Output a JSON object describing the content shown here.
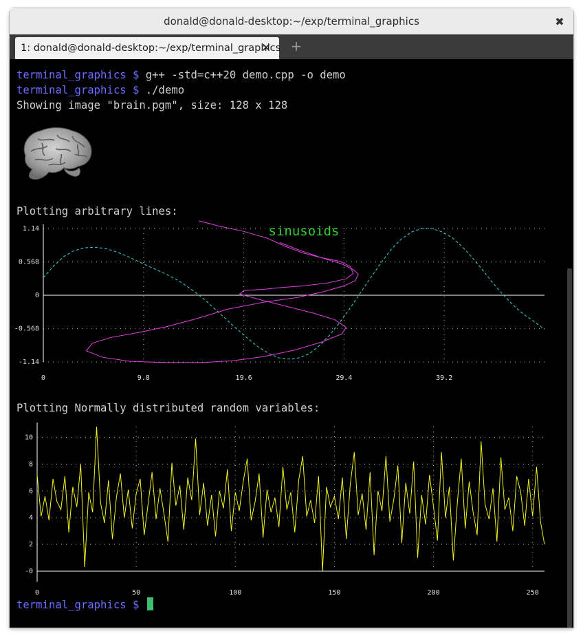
{
  "window": {
    "title": "donald@donald-desktop:~/exp/terminal_graphics"
  },
  "tabs": [
    {
      "label": "1: donald@donald-desktop:~/exp/terminal_graphics"
    }
  ],
  "icons": {
    "close": "close-icon",
    "tab_close": "tab-close-icon",
    "new_tab": "plus-icon",
    "image": "brain-image"
  },
  "colors": {
    "prompt": "#6b6bff",
    "sinusoid_magenta": "#e23de2",
    "sinusoid_cyan": "#33d6d6",
    "random_yellow": "#f5f51e",
    "title_green": "#33cc33",
    "cursor": "#3dbf6f"
  },
  "terminal": {
    "prompt": "terminal_graphics $",
    "lines": [
      {
        "prompt": "terminal_graphics $",
        "command": " g++ -std=c++20 demo.cpp -o demo"
      },
      {
        "prompt": "terminal_graphics $",
        "command": " ./demo"
      }
    ],
    "image_info": "Showing image \"brain.pgm\", size: 128 x 128",
    "plot1_heading": "Plotting arbitrary lines:",
    "plot2_heading": "Plotting Normally distributed random variables:"
  },
  "chart_data": [
    {
      "type": "line",
      "title": "sinusoids",
      "xlim": [
        0,
        49
      ],
      "ylim": [
        -1.14,
        1.14
      ],
      "x_ticks": [
        "0",
        "9.8",
        "19.6",
        "29.4",
        "39.2"
      ],
      "x_tick_values": [
        0,
        9.8,
        19.6,
        29.4,
        39.2
      ],
      "y_ticks": [
        "1.14",
        "0.568",
        "0",
        "-0.568",
        "-1.14"
      ],
      "y_tick_values": [
        1.14,
        0.568,
        0,
        -0.568,
        -1.14
      ],
      "grid": true,
      "series": [
        {
          "style": "dashed",
          "color": "#33d6d6",
          "x": [
            0,
            1,
            2,
            3,
            4,
            5,
            6,
            7,
            8,
            9,
            10,
            11,
            12,
            13,
            14,
            15,
            16,
            17,
            18,
            19,
            20,
            21,
            22,
            23,
            24,
            25,
            26,
            27,
            28,
            29,
            30,
            31,
            32,
            33,
            34,
            35,
            36,
            37,
            38,
            39,
            40,
            41,
            42,
            43,
            44,
            45,
            46,
            47,
            48,
            49
          ],
          "y": [
            0.3,
            0.5,
            0.66,
            0.76,
            0.81,
            0.82,
            0.8,
            0.75,
            0.68,
            0.6,
            0.52,
            0.44,
            0.36,
            0.27,
            0.16,
            0.03,
            -0.11,
            -0.27,
            -0.43,
            -0.59,
            -0.74,
            -0.88,
            -0.99,
            -1.07,
            -1.09,
            -1.07,
            -1.0,
            -0.86,
            -0.68,
            -0.46,
            -0.22,
            0.04,
            0.3,
            0.55,
            0.78,
            0.96,
            1.08,
            1.14,
            1.14,
            1.08,
            0.98,
            0.82,
            0.63,
            0.42,
            0.2,
            0.0,
            -0.18,
            -0.33,
            -0.45,
            -0.58
          ]
        },
        {
          "style": "solid",
          "color": "#e23de2",
          "x": [
            15.2,
            17.2,
            19.6,
            21.8,
            23.6,
            25.4,
            27.2,
            29.0,
            30.0,
            30.3,
            29.6,
            27.8,
            25.5,
            23.2,
            21.5,
            19.6,
            19.2,
            21.5,
            24.0,
            26.5,
            28.5,
            29.6,
            29.2,
            27.2,
            24.5,
            21.5,
            18.5,
            15.5,
            12.0,
            8.5,
            5.8,
            4.2,
            4.8,
            6.6,
            9.2,
            12.0,
            15.0,
            18.0,
            21.5,
            24.8,
            27.4,
            29.4,
            30.5,
            30.8,
            30.3,
            29.1,
            27.2,
            25.2,
            23.1
          ],
          "y": [
            1.27,
            1.18,
            1.09,
            0.98,
            0.84,
            0.72,
            0.64,
            0.58,
            0.49,
            0.37,
            0.28,
            0.21,
            0.16,
            0.13,
            0.1,
            0.08,
            0.02,
            -0.09,
            -0.2,
            -0.31,
            -0.42,
            -0.55,
            -0.66,
            -0.8,
            -0.94,
            -1.05,
            -1.12,
            -1.15,
            -1.15,
            -1.13,
            -1.06,
            -0.95,
            -0.82,
            -0.72,
            -0.64,
            -0.54,
            -0.4,
            -0.24,
            -0.12,
            -0.04,
            0.06,
            0.16,
            0.25,
            0.36,
            0.44,
            0.54,
            0.64,
            0.76,
            0.9
          ]
        }
      ]
    },
    {
      "type": "line",
      "xlim": [
        0,
        256
      ],
      "ylim": [
        0,
        10.8
      ],
      "x_ticks": [
        "0",
        "50",
        "100",
        "150",
        "200",
        "250"
      ],
      "x_tick_values": [
        0,
        50,
        100,
        150,
        200,
        250
      ],
      "y_ticks": [
        "10",
        "8",
        "6",
        "4",
        "2",
        "-0"
      ],
      "y_tick_values": [
        10,
        8,
        6,
        4,
        2,
        0
      ],
      "grid": true,
      "series": [
        {
          "color": "#f5f51e",
          "x": [
            0,
            2,
            4,
            6,
            8,
            10,
            12,
            14,
            16,
            18,
            20,
            22,
            24,
            26,
            28,
            30,
            32,
            34,
            36,
            38,
            40,
            42,
            44,
            46,
            48,
            50,
            52,
            54,
            56,
            58,
            60,
            62,
            64,
            66,
            68,
            70,
            72,
            74,
            76,
            78,
            80,
            82,
            84,
            86,
            88,
            90,
            92,
            94,
            96,
            98,
            100,
            102,
            104,
            106,
            108,
            110,
            112,
            114,
            116,
            118,
            120,
            122,
            124,
            126,
            128,
            130,
            132,
            134,
            136,
            138,
            140,
            142,
            144,
            146,
            148,
            150,
            152,
            154,
            156,
            158,
            160,
            162,
            164,
            166,
            168,
            170,
            172,
            174,
            176,
            178,
            180,
            182,
            184,
            186,
            188,
            190,
            192,
            194,
            196,
            198,
            200,
            202,
            204,
            206,
            208,
            210,
            212,
            214,
            216,
            218,
            220,
            222,
            224,
            226,
            228,
            230,
            232,
            234,
            236,
            238,
            240,
            242,
            244,
            246,
            248,
            250,
            252,
            254,
            256
          ],
          "y": [
            7.2,
            4.1,
            5.6,
            3.8,
            6.9,
            5.2,
            4.6,
            7.1,
            2.9,
            6.3,
            4.8,
            8.0,
            0.3,
            5.9,
            4.4,
            10.8,
            5.1,
            3.6,
            6.8,
            2.4,
            5.5,
            7.3,
            4.0,
            6.1,
            3.2,
            5.8,
            6.9,
            2.7,
            5.0,
            7.4,
            3.9,
            6.2,
            4.3,
            2.2,
            8.1,
            4.9,
            6.4,
            3.1,
            7.0,
            5.3,
            9.9,
            4.2,
            6.6,
            3.4,
            5.7,
            2.6,
            6.0,
            4.7,
            7.6,
            3.0,
            5.9,
            4.5,
            6.7,
            8.4,
            3.8,
            5.2,
            7.3,
            2.5,
            6.1,
            4.4,
            5.5,
            3.3,
            7.8,
            4.6,
            5.9,
            2.9,
            6.8,
            8.6,
            4.1,
            5.3,
            3.6,
            7.1,
            0.0,
            6.3,
            4.8,
            5.6,
            3.9,
            7.0,
            2.4,
            6.5,
            8.9,
            4.2,
            5.8,
            3.1,
            7.4,
            1.2,
            6.0,
            4.5,
            8.6,
            3.7,
            5.4,
            7.9,
            2.1,
            6.6,
            4.3,
            8.2,
            1.0,
            5.7,
            3.5,
            7.2,
            4.8,
            2.3,
            8.9,
            4.0,
            6.3,
            0.8,
            5.1,
            8.4,
            3.2,
            6.7,
            4.4,
            2.7,
            9.7,
            5.0,
            3.9,
            6.2,
            2.2,
            8.5,
            4.6,
            5.5,
            3.0,
            7.1,
            5.9,
            3.4,
            6.9,
            4.1,
            7.8,
            3.7,
            2.0
          ]
        }
      ]
    }
  ]
}
